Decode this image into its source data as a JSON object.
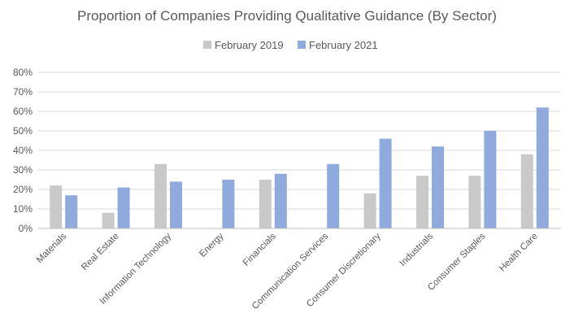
{
  "chart_data": {
    "type": "bar",
    "title": "Proportion of Companies Providing Qualitative Guidance (By Sector)",
    "xlabel": "",
    "ylabel": "",
    "ylim": [
      0,
      0.8
    ],
    "yticks": [
      0,
      0.1,
      0.2,
      0.3,
      0.4,
      0.5,
      0.6,
      0.7,
      0.8
    ],
    "ytick_labels": [
      "0%",
      "10%",
      "20%",
      "30%",
      "40%",
      "50%",
      "60%",
      "70%",
      "80%"
    ],
    "grid": true,
    "legend_position": "top-center",
    "categories": [
      "Materials",
      "Real Estate",
      "Information Technology",
      "Energy",
      "Financials",
      "Communication Services",
      "Consumer Discretionary",
      "Industrials",
      "Consumer Staples",
      "Health Care"
    ],
    "series": [
      {
        "name": "February 2019",
        "color": "#c9c9c9",
        "values": [
          0.22,
          0.08,
          0.33,
          0.0,
          0.25,
          0.0,
          0.18,
          0.27,
          0.27,
          0.38
        ]
      },
      {
        "name": "February 2021",
        "color": "#8faadc",
        "values": [
          0.17,
          0.21,
          0.24,
          0.25,
          0.28,
          0.33,
          0.46,
          0.42,
          0.5,
          0.62
        ]
      }
    ]
  }
}
